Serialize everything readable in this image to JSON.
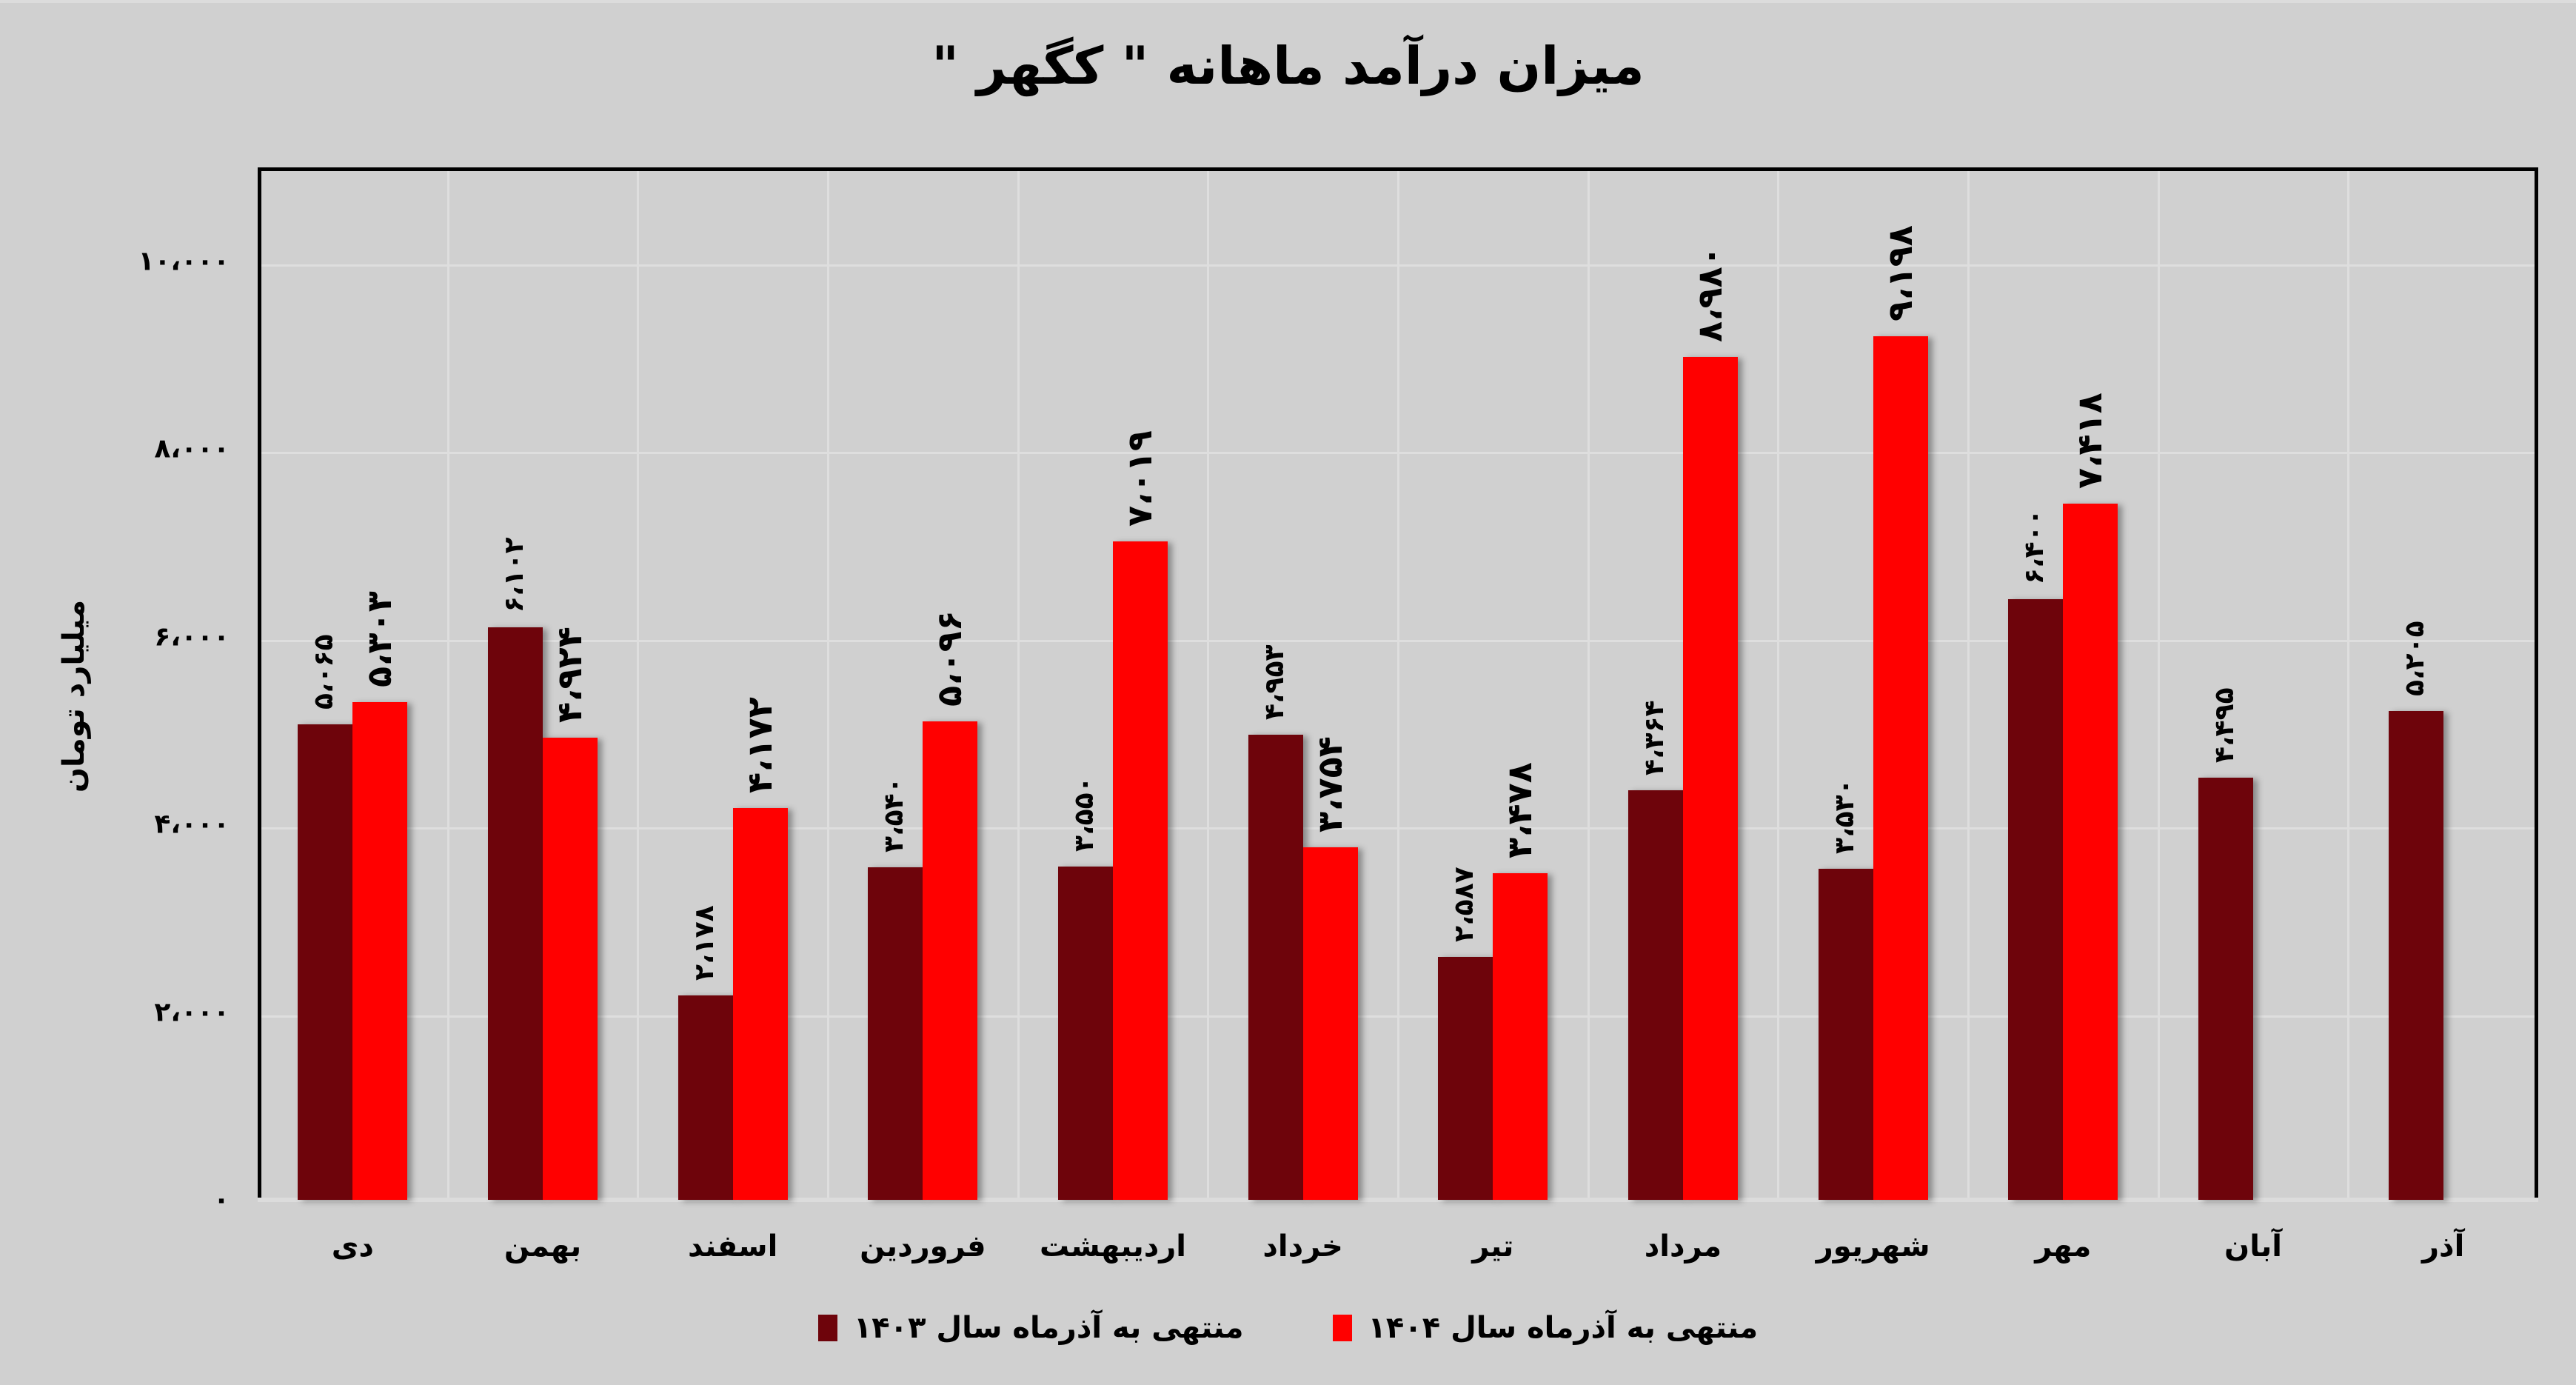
{
  "chart_data": {
    "type": "bar",
    "title": "میزان درآمد ماهانه \" کگهر \"",
    "xlabel": "",
    "ylabel": "میلیارد تومان",
    "ylim": [
      0,
      11000
    ],
    "yticks": [
      0,
      2000,
      4000,
      6000,
      8000,
      10000
    ],
    "ytick_labels": [
      "۰",
      "۲،۰۰۰",
      "۴،۰۰۰",
      "۶،۰۰۰",
      "۸،۰۰۰",
      "۱۰،۰۰۰"
    ],
    "grid": true,
    "legend_position": "bottom",
    "categories": [
      "دی",
      "بهمن",
      "اسفند",
      "فروردین",
      "اردیبهشت",
      "خرداد",
      "تیر",
      "مرداد",
      "شهریور",
      "مهر",
      "آبان",
      "آذر"
    ],
    "series": [
      {
        "name": "منتهی به آذرماه سال ۱۴۰۳",
        "color": "#6e040b",
        "values": [
          5065,
          6102,
          2178,
          3540,
          3550,
          4953,
          2587,
          4364,
          3530,
          6400,
          4495,
          5205
        ],
        "labels": [
          "۵،۰۶۵",
          "۶،۱۰۲",
          "۲،۱۷۸",
          "۳،۵۴۰",
          "۳،۵۵۰",
          "۴،۹۵۳",
          "۲،۵۸۷",
          "۴،۳۶۴",
          "۳،۵۳۰",
          "۶،۴۰۰",
          "۴،۴۹۵",
          "۵،۲۰۵"
        ]
      },
      {
        "name": "منتهی به آذرماه سال ۱۴۰۴",
        "color": "#ff0000",
        "values": [
          5303,
          4924,
          4172,
          5096,
          7019,
          3754,
          3478,
          8980,
          9198,
          7418,
          null,
          null
        ],
        "labels": [
          "۵،۳۰۳",
          "۴،۹۲۴",
          "۴،۱۷۲",
          "۵،۰۹۶",
          "۷،۰۱۹",
          "۳،۷۵۴",
          "۳،۴۷۸",
          "۸،۹۸۰",
          "۹،۱۹۸",
          "۷،۴۱۸",
          null,
          null
        ]
      }
    ]
  }
}
